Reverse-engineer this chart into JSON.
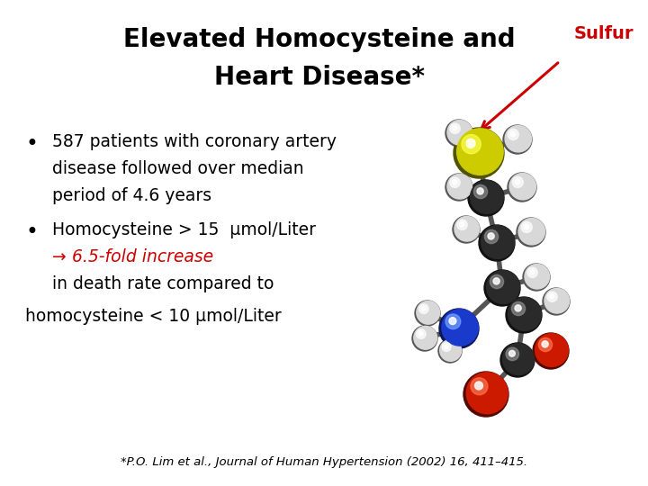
{
  "title_line1": "Elevated Homocysteine and",
  "title_line2": "Heart Disease*",
  "sulfur_label": "Sulfur",
  "bullet1_line1": "587 patients with coronary artery",
  "bullet1_line2": "disease followed over median",
  "bullet1_line3": "period of 4.6 years",
  "bullet2_line1": "Homocysteine > 15  μmol/Liter",
  "bullet2_line3": "in death rate compared to",
  "bullet2_line4": "homocysteine < 10 μmol/Liter",
  "footnote": "*P.O. Lim et al., Journal of Human Hypertension (2002) 16, 411–415.",
  "bg_color": "#ffffff",
  "title_color": "#000000",
  "text_color": "#000000",
  "red_color": "#cc0000",
  "title_fontsize": 20,
  "body_fontsize": 13.5,
  "footnote_fontsize": 9.5,
  "sulfur_fontsize": 14
}
